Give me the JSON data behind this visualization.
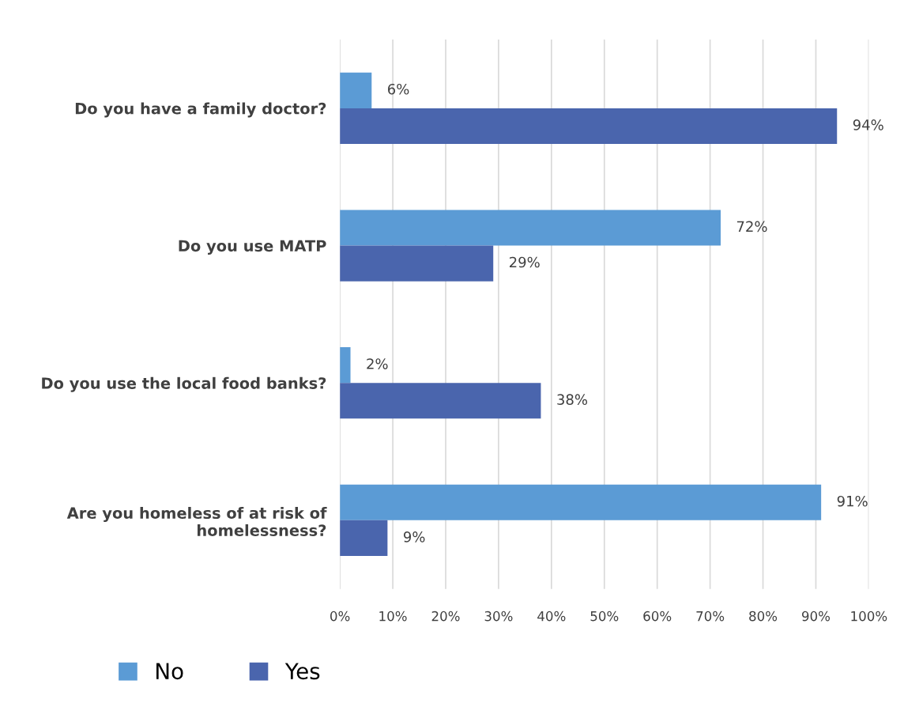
{
  "chart_data": {
    "type": "bar",
    "orientation": "horizontal",
    "categories": [
      "Do you have a family doctor?",
      "Do you use MATP",
      "Do you use the local food banks?",
      "Are you homeless of at risk of homelessness?"
    ],
    "series": [
      {
        "name": "No",
        "color": "#5b9bd5",
        "values": [
          6,
          72,
          2,
          91
        ],
        "value_labels": [
          "6%",
          "72%",
          "2%",
          "91%"
        ]
      },
      {
        "name": "Yes",
        "color": "#4a65ad",
        "values": [
          94,
          29,
          38,
          9
        ],
        "value_labels": [
          "94%",
          "29%",
          "38%",
          "9%"
        ]
      }
    ],
    "xlim": [
      0,
      100
    ],
    "xticks": [
      {
        "value": 0,
        "label": "0%"
      },
      {
        "value": 10,
        "label": "10%"
      },
      {
        "value": 20,
        "label": "20%"
      },
      {
        "value": 30,
        "label": "30%"
      },
      {
        "value": 40,
        "label": "40%"
      },
      {
        "value": 50,
        "label": "50%"
      },
      {
        "value": 60,
        "label": "60%"
      },
      {
        "value": 70,
        "label": "70%"
      },
      {
        "value": 80,
        "label": "80%"
      },
      {
        "value": 90,
        "label": "90%"
      },
      {
        "value": 100,
        "label": "100%"
      }
    ],
    "grid": "x",
    "legend": "bottom left"
  }
}
